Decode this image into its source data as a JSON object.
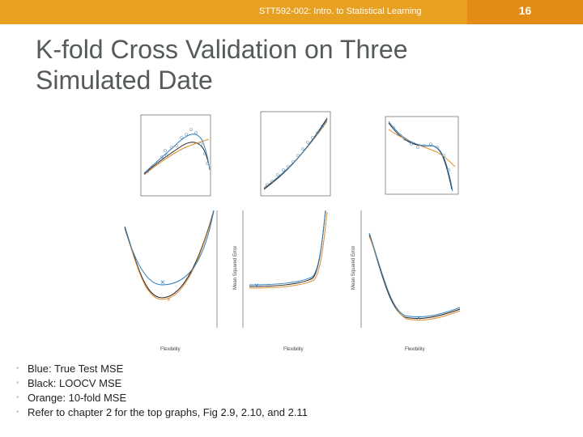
{
  "header": {
    "course": "STT592-002: Intro. to Statistical Learning",
    "page_number": "16",
    "bar_color": "#e8a020",
    "page_box_color": "#e38b14"
  },
  "title_line1": "K-fold Cross Validation on Three",
  "title_line2": "Simulated Date",
  "colors": {
    "true_test_mse": "#2f7fbf",
    "loocv": "#111111",
    "tenfold": "#e08a2b"
  },
  "figure": {
    "ylabel": "Mean Squared Error",
    "xlabel": "Flexibility"
  },
  "bullets": [
    "Blue: True Test MSE",
    "Black: LOOCV MSE",
    "Orange: 10-fold MSE",
    "Refer to chapter 2 for the top graphs, Fig 2.9, 2.10, and 2.11"
  ]
}
